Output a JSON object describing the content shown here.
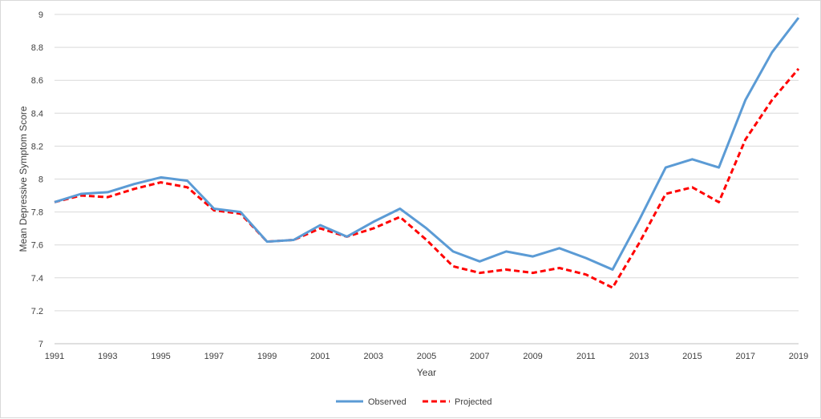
{
  "chart_data": {
    "type": "line",
    "title": "",
    "xlabel": "Year",
    "ylabel": "Mean Depressive Symptom Score",
    "xlim": [
      1991,
      2019
    ],
    "ylim": [
      7,
      9
    ],
    "x_ticks": [
      "1991",
      "1993",
      "1995",
      "1997",
      "1999",
      "2001",
      "2003",
      "2005",
      "2007",
      "2009",
      "2011",
      "2013",
      "2015",
      "2017",
      "2019"
    ],
    "y_ticks": [
      "7",
      "7.2",
      "7.4",
      "7.6",
      "7.8",
      "8",
      "8.2",
      "8.4",
      "8.6",
      "8.8",
      "9"
    ],
    "grid": "horizontal",
    "legend_position": "bottom",
    "x": [
      1991,
      1992,
      1993,
      1994,
      1995,
      1996,
      1997,
      1998,
      1999,
      2000,
      2001,
      2002,
      2003,
      2004,
      2005,
      2006,
      2007,
      2008,
      2009,
      2010,
      2011,
      2012,
      2013,
      2014,
      2015,
      2016,
      2017,
      2018,
      2019
    ],
    "series": [
      {
        "name": "Observed",
        "color": "#5B9BD5",
        "style": "solid",
        "values": [
          7.86,
          7.91,
          7.92,
          7.97,
          8.01,
          7.99,
          7.82,
          7.8,
          7.62,
          7.63,
          7.72,
          7.65,
          7.74,
          7.82,
          7.7,
          7.56,
          7.5,
          7.56,
          7.53,
          7.58,
          7.52,
          7.45,
          7.75,
          8.07,
          8.12,
          8.07,
          8.48,
          8.77,
          8.98
        ]
      },
      {
        "name": "Projected",
        "color": "#FF0000",
        "style": "dashed",
        "values": [
          7.86,
          7.9,
          7.89,
          7.94,
          7.98,
          7.95,
          7.81,
          7.79,
          7.62,
          7.63,
          7.7,
          7.65,
          7.7,
          7.77,
          7.63,
          7.47,
          7.43,
          7.45,
          7.43,
          7.46,
          7.42,
          7.34,
          7.61,
          7.91,
          7.95,
          7.86,
          8.24,
          8.48,
          8.67
        ]
      }
    ]
  }
}
